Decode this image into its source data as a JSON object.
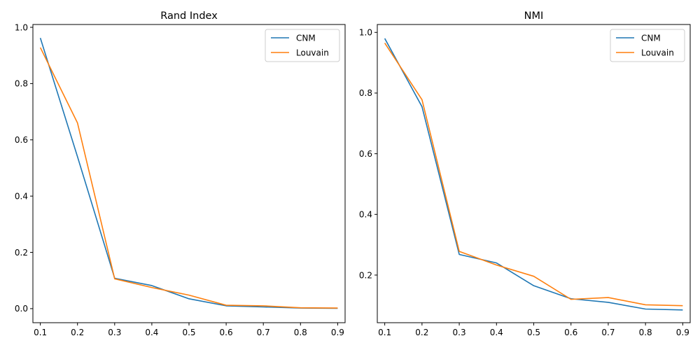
{
  "chart_data": [
    {
      "type": "line",
      "title": "Rand Index",
      "xlabel": "",
      "ylabel": "",
      "x": [
        0.1,
        0.2,
        0.3,
        0.4,
        0.5,
        0.6,
        0.7,
        0.8,
        0.9
      ],
      "xticks": [
        "0.1",
        "0.2",
        "0.3",
        "0.4",
        "0.5",
        "0.6",
        "0.7",
        "0.8",
        "0.9"
      ],
      "yticks": [
        "0.0",
        "0.2",
        "0.4",
        "0.6",
        "0.8",
        "1.0"
      ],
      "ylim": [
        -0.05,
        1.01
      ],
      "legend_position": "top-right",
      "grid": false,
      "series": [
        {
          "name": "CNM",
          "color": "#1f77b4",
          "values": [
            0.962,
            0.54,
            0.108,
            0.082,
            0.035,
            0.01,
            0.006,
            0.002,
            0.001
          ]
        },
        {
          "name": "Louvain",
          "color": "#ff7f0e",
          "values": [
            0.928,
            0.66,
            0.106,
            0.075,
            0.048,
            0.012,
            0.01,
            0.003,
            0.002
          ]
        }
      ]
    },
    {
      "type": "line",
      "title": "NMI",
      "xlabel": "",
      "ylabel": "",
      "x": [
        0.1,
        0.2,
        0.3,
        0.4,
        0.5,
        0.6,
        0.7,
        0.8,
        0.9
      ],
      "xticks": [
        "0.1",
        "0.2",
        "0.3",
        "0.4",
        "0.5",
        "0.6",
        "0.7",
        "0.8",
        "0.9"
      ],
      "yticks": [
        "0.2",
        "0.4",
        "0.6",
        "0.8",
        "1.0"
      ],
      "ylim": [
        0.043,
        1.026
      ],
      "legend_position": "top-right",
      "grid": false,
      "series": [
        {
          "name": "CNM",
          "color": "#1f77b4",
          "values": [
            0.98,
            0.755,
            0.268,
            0.24,
            0.165,
            0.122,
            0.11,
            0.088,
            0.085
          ]
        },
        {
          "name": "Louvain",
          "color": "#ff7f0e",
          "values": [
            0.965,
            0.778,
            0.278,
            0.233,
            0.196,
            0.12,
            0.126,
            0.102,
            0.099
          ]
        }
      ]
    }
  ]
}
